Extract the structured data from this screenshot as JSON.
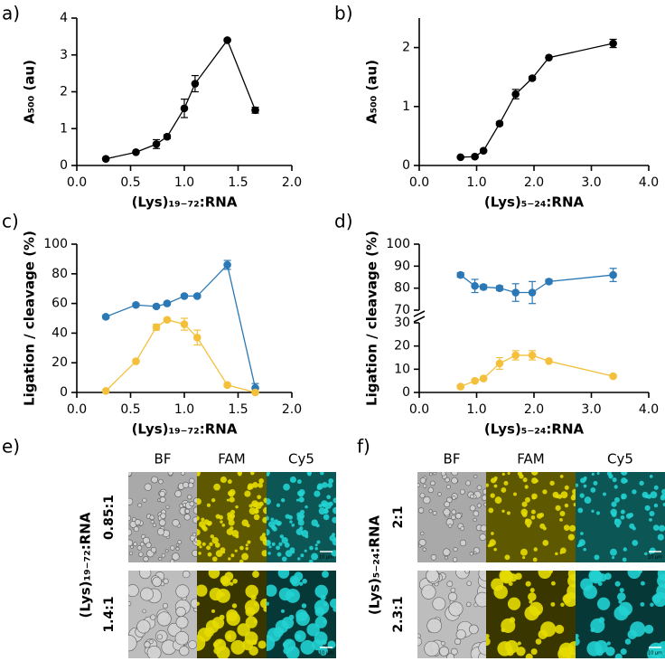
{
  "chart_data": [
    {
      "type": "line",
      "panel_label": "a)",
      "xlabel": "(Lys)₁₉₋₇₂:RNA",
      "ylabel": "A₅₀₀ (au)",
      "x": [
        0.27,
        0.55,
        0.74,
        0.84,
        1.0,
        1.1,
        1.4,
        1.66
      ],
      "series": [
        {
          "color": "#000000",
          "values": [
            0.18,
            0.36,
            0.58,
            0.78,
            1.55,
            2.22,
            3.4,
            1.5
          ],
          "errors": [
            0.02,
            0.03,
            0.12,
            0.05,
            0.25,
            0.22,
            0.03,
            0.08
          ]
        }
      ],
      "xlim": [
        0,
        2
      ],
      "xticks": [
        {
          "value": 0,
          "label": "0.0"
        },
        0.5,
        {
          "value": 1,
          "label": "1.0"
        },
        1.5,
        {
          "value": 2,
          "label": "2.0"
        }
      ],
      "ylim": [
        0,
        4
      ],
      "yticks": [
        0,
        1,
        2,
        3,
        4
      ],
      "grid": false
    },
    {
      "type": "line",
      "panel_label": "b)",
      "xlabel": "(Lys)₅₋₂₄:RNA",
      "ylabel": "A₅₀₀ (au)",
      "x": [
        0.72,
        0.97,
        1.12,
        1.4,
        1.68,
        1.97,
        2.26,
        3.38
      ],
      "series": [
        {
          "color": "#000000",
          "values": [
            0.14,
            0.15,
            0.25,
            0.71,
            1.21,
            1.48,
            1.83,
            2.07
          ],
          "errors": [
            0.01,
            0.02,
            0.02,
            0.03,
            0.08,
            0.03,
            0.02,
            0.07
          ]
        }
      ],
      "xlim": [
        0,
        4
      ],
      "xticks": [
        {
          "value": 0,
          "label": "0.0"
        },
        {
          "value": 1,
          "label": "1.0"
        },
        {
          "value": 2,
          "label": "2.0"
        },
        {
          "value": 3,
          "label": "3.0"
        },
        {
          "value": 4,
          "label": "4.0"
        }
      ],
      "ylim": [
        0,
        2.5
      ],
      "yticks": [
        0,
        1,
        2
      ],
      "grid": false
    },
    {
      "type": "line",
      "panel_label": "c)",
      "xlabel": "(Lys)₁₉₋₇₂:RNA",
      "ylabel": "Ligation / cleavage (%)",
      "x": [
        0.27,
        0.55,
        0.74,
        0.84,
        1.0,
        1.12,
        1.4,
        1.66
      ],
      "series": [
        {
          "color": "#2a78b5",
          "values": [
            51,
            59,
            58,
            60,
            65,
            65,
            86,
            3
          ],
          "errors": [
            1,
            1,
            1,
            1,
            1,
            1,
            3,
            3
          ]
        },
        {
          "color": "#f4c03c",
          "values": [
            1,
            21,
            44,
            49,
            46,
            37,
            5,
            0
          ],
          "errors": [
            0,
            1,
            2,
            1,
            4,
            5,
            1,
            0
          ]
        }
      ],
      "xlim": [
        0,
        2
      ],
      "xticks": [
        {
          "value": 0,
          "label": "0.0"
        },
        0.5,
        {
          "value": 1,
          "label": "1.0"
        },
        1.5,
        {
          "value": 2,
          "label": "2.0"
        }
      ],
      "ylim": [
        0,
        100
      ],
      "yticks": [
        0,
        20,
        40,
        60,
        80,
        100
      ],
      "grid": false
    },
    {
      "type": "line",
      "panel_label": "d)",
      "xlabel": "(Lys)₅₋₂₄:RNA",
      "ylabel": "Ligation / cleavage (%)",
      "x": [
        0.72,
        0.97,
        1.12,
        1.4,
        1.68,
        1.97,
        2.26,
        3.38
      ],
      "series": [
        {
          "color": "#2a78b5",
          "values": [
            86,
            81,
            80.5,
            80,
            78,
            78,
            83,
            86
          ],
          "errors": [
            1,
            3,
            1,
            1,
            4,
            5,
            1,
            3
          ]
        },
        {
          "color": "#f4c03c",
          "values": [
            2.5,
            5,
            6,
            12.5,
            16,
            16,
            13.5,
            7
          ],
          "errors": [
            0.5,
            0.5,
            0.5,
            2.5,
            2,
            2,
            0.5,
            0.5
          ]
        }
      ],
      "xlim": [
        0,
        4
      ],
      "xticks": [
        {
          "value": 0,
          "label": "0.0"
        },
        {
          "value": 1,
          "label": "1.0"
        },
        {
          "value": 2,
          "label": "2.0"
        },
        {
          "value": 3,
          "label": "3.0"
        },
        {
          "value": 4,
          "label": "4.0"
        }
      ],
      "ylim": [
        0,
        100
      ],
      "ybreak": [
        30,
        70
      ],
      "yticks": [
        0,
        10,
        20,
        30,
        70,
        80,
        90,
        100
      ],
      "grid": false
    }
  ],
  "image_panels": [
    {
      "panel_label": "e)",
      "ylabel": "(Lys)₁₉₋₇₂:RNA",
      "columns": [
        "BF",
        "FAM",
        "Cy5"
      ],
      "rows": [
        "0.85:1",
        "1.4:1"
      ],
      "scale_bar": "10 µm"
    },
    {
      "panel_label": "f)",
      "ylabel": "(Lys)₅₋₂₄:RNA",
      "columns": [
        "BF",
        "FAM",
        "Cy5"
      ],
      "rows": [
        "2:1",
        "2.3:1"
      ],
      "scale_bar": "10 µm"
    }
  ]
}
